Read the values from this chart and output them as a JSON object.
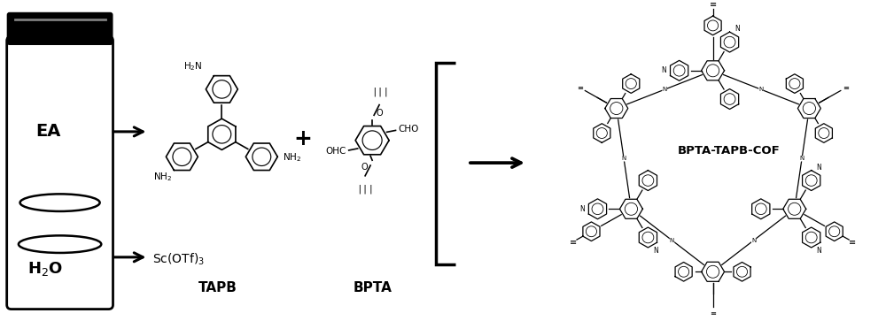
{
  "background_color": "#ffffff",
  "fig_width": 10.0,
  "fig_height": 3.63,
  "dpi": 100,
  "ea_label": "EA",
  "h2o_label": "H$_2$O",
  "sc_label": "Sc(OTf)$_3$",
  "tapb_label": "TAPB",
  "bpta_label": "BPTA",
  "cof_label": "BPTA-TAPB-COF",
  "plus_label": "+",
  "text_color": "#000000",
  "lw_bottle": 2.0,
  "lw_chem": 1.2,
  "lw_arrow": 2.2,
  "lw_bracket": 2.5,
  "lw_cof": 0.9
}
